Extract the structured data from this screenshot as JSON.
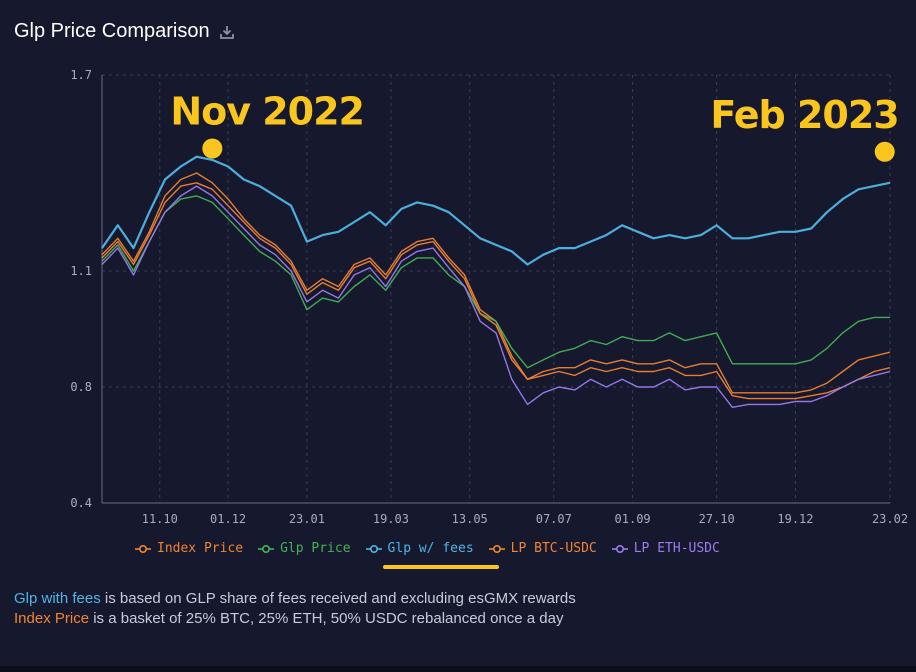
{
  "header": {
    "title": "Glp Price Comparison",
    "download_icon": "download-icon"
  },
  "chart_data": {
    "type": "line",
    "title": "Glp Price Comparison",
    "xlabel": "",
    "ylabel": "",
    "ylim": [
      0.4,
      1.7
    ],
    "yticks": [
      "0.4",
      "0.8",
      "1.1",
      "1.7"
    ],
    "ytick_values": [
      0.4,
      0.8,
      1.1,
      1.7
    ],
    "xlim": [
      0,
      150
    ],
    "xticks": [
      {
        "label": "11.10",
        "x": 11
      },
      {
        "label": "01.12",
        "x": 24
      },
      {
        "label": "23.01",
        "x": 39
      },
      {
        "label": "19.03",
        "x": 55
      },
      {
        "label": "13.05",
        "x": 70
      },
      {
        "label": "07.07",
        "x": 86
      },
      {
        "label": "01.09",
        "x": 101
      },
      {
        "label": "27.10",
        "x": 117
      },
      {
        "label": "19.12",
        "x": 132
      },
      {
        "label": "23.02",
        "x": 150
      }
    ],
    "grid": true,
    "legend_position": "bottom",
    "x": [
      0,
      3,
      6,
      9,
      12,
      15,
      18,
      21,
      24,
      27,
      30,
      33,
      36,
      39,
      42,
      45,
      48,
      51,
      54,
      57,
      60,
      63,
      66,
      69,
      72,
      75,
      78,
      81,
      84,
      87,
      90,
      93,
      96,
      99,
      102,
      105,
      108,
      111,
      114,
      117,
      120,
      123,
      126,
      129,
      132,
      135,
      138,
      141,
      144,
      147,
      150
    ],
    "series": [
      {
        "name": "Index Price",
        "color": "#f08432",
        "values": [
          1.15,
          1.2,
          1.13,
          1.22,
          1.33,
          1.38,
          1.4,
          1.37,
          1.32,
          1.26,
          1.21,
          1.18,
          1.13,
          1.05,
          1.08,
          1.06,
          1.12,
          1.14,
          1.09,
          1.16,
          1.19,
          1.2,
          1.14,
          1.09,
          1.0,
          0.97,
          0.88,
          0.82,
          0.84,
          0.85,
          0.85,
          0.87,
          0.86,
          0.87,
          0.86,
          0.86,
          0.87,
          0.85,
          0.86,
          0.86,
          0.78,
          0.78,
          0.78,
          0.78,
          0.78,
          0.79,
          0.81,
          0.84,
          0.87,
          0.88,
          0.89
        ]
      },
      {
        "name": "Glp Price",
        "color": "#42b453",
        "values": [
          1.13,
          1.18,
          1.1,
          1.19,
          1.28,
          1.32,
          1.33,
          1.31,
          1.26,
          1.21,
          1.16,
          1.13,
          1.09,
          1.0,
          1.03,
          1.02,
          1.06,
          1.09,
          1.05,
          1.11,
          1.14,
          1.14,
          1.09,
          1.06,
          0.99,
          0.97,
          0.9,
          0.85,
          0.87,
          0.89,
          0.9,
          0.92,
          0.91,
          0.93,
          0.92,
          0.92,
          0.94,
          0.92,
          0.93,
          0.94,
          0.86,
          0.86,
          0.86,
          0.86,
          0.86,
          0.87,
          0.9,
          0.94,
          0.97,
          0.98,
          0.98
        ]
      },
      {
        "name": "Glp w/ fees",
        "color": "#4fb6e6",
        "values": [
          1.17,
          1.24,
          1.17,
          1.28,
          1.38,
          1.42,
          1.45,
          1.44,
          1.42,
          1.38,
          1.36,
          1.33,
          1.3,
          1.19,
          1.21,
          1.22,
          1.25,
          1.28,
          1.24,
          1.29,
          1.31,
          1.3,
          1.28,
          1.24,
          1.2,
          1.18,
          1.16,
          1.12,
          1.15,
          1.17,
          1.17,
          1.19,
          1.21,
          1.24,
          1.22,
          1.2,
          1.21,
          1.2,
          1.21,
          1.24,
          1.2,
          1.2,
          1.21,
          1.22,
          1.22,
          1.23,
          1.28,
          1.32,
          1.35,
          1.36,
          1.37
        ]
      },
      {
        "name": "LP BTC-USDC",
        "color": "#f08432",
        "values": [
          1.14,
          1.19,
          1.12,
          1.21,
          1.31,
          1.36,
          1.37,
          1.35,
          1.3,
          1.25,
          1.2,
          1.17,
          1.12,
          1.04,
          1.07,
          1.05,
          1.11,
          1.13,
          1.08,
          1.15,
          1.18,
          1.19,
          1.13,
          1.08,
          0.99,
          0.96,
          0.87,
          0.82,
          0.83,
          0.84,
          0.83,
          0.85,
          0.84,
          0.85,
          0.84,
          0.84,
          0.85,
          0.83,
          0.83,
          0.84,
          0.77,
          0.76,
          0.76,
          0.76,
          0.76,
          0.77,
          0.78,
          0.8,
          0.82,
          0.84,
          0.85
        ]
      },
      {
        "name": "LP ETH-USDC",
        "color": "#9a7cf0",
        "values": [
          1.12,
          1.17,
          1.09,
          1.19,
          1.28,
          1.33,
          1.36,
          1.33,
          1.28,
          1.23,
          1.18,
          1.15,
          1.1,
          1.02,
          1.05,
          1.03,
          1.09,
          1.11,
          1.06,
          1.13,
          1.16,
          1.17,
          1.11,
          1.06,
          0.97,
          0.94,
          0.82,
          0.74,
          0.78,
          0.8,
          0.79,
          0.82,
          0.8,
          0.82,
          0.8,
          0.8,
          0.82,
          0.79,
          0.8,
          0.8,
          0.73,
          0.74,
          0.74,
          0.74,
          0.75,
          0.75,
          0.77,
          0.8,
          0.82,
          0.83,
          0.84
        ]
      }
    ],
    "annotations": [
      {
        "text": "Nov 2022",
        "x": 21,
        "y": 1.475
      },
      {
        "text": "Feb 2023",
        "x": 149,
        "y": 1.465
      }
    ]
  },
  "notes": {
    "line1_highlight": "Glp with fees",
    "line1_rest": " is based on GLP share of fees received and excluding esGMX rewards",
    "line2_highlight": "Index Price",
    "line2_rest": " is a basket of 25% BTC, 25% ETH, 50% USDC rebalanced once a day"
  }
}
